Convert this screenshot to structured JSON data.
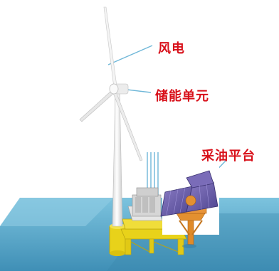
{
  "labels": {
    "wind_power": "风电",
    "energy_storage": "储能单元",
    "oil_platform": "采油平台"
  },
  "colors": {
    "label_text": "#d8101a",
    "sea": "#4a9bbf",
    "foundation": "#e8d21a",
    "turbine": "#f2f2f2",
    "solar_panel": "#6c5fa8",
    "platform_frame": "#e08a28",
    "leader_line": "#6fb7d8"
  }
}
